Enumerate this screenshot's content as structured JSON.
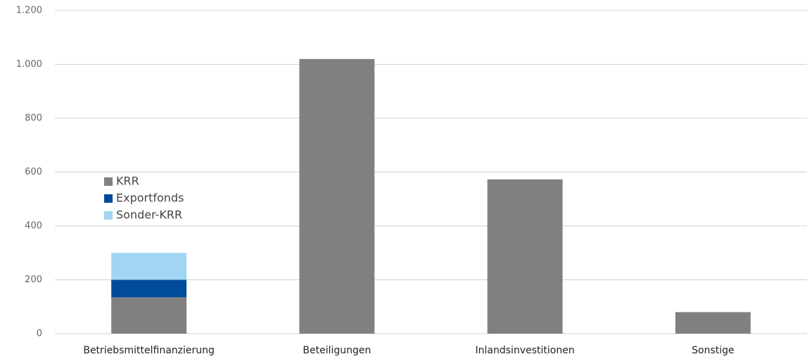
{
  "chart_data": {
    "type": "stacked_bar",
    "categories": [
      "Betriebsmittelfinanzierung",
      "Beteiligungen",
      "Inlandsinvestitionen",
      "Sonstige"
    ],
    "series": [
      {
        "name": "KRR",
        "color": "#808080",
        "values": [
          135,
          1020,
          573,
          80
        ]
      },
      {
        "name": "Exportfonds",
        "color": "#004b9b",
        "values": [
          65,
          0,
          0,
          0
        ]
      },
      {
        "name": "Sonder-KRR",
        "color": "#a0d6f1",
        "values": [
          100,
          0,
          0,
          0
        ]
      }
    ],
    "ylim": [
      0,
      1200
    ],
    "yticks": [
      0,
      200,
      400,
      600,
      800,
      {
        "value": 1000,
        "label": "1.000"
      },
      {
        "value": 1200,
        "label": "1.200"
      }
    ],
    "grid": true,
    "legend": "left"
  }
}
